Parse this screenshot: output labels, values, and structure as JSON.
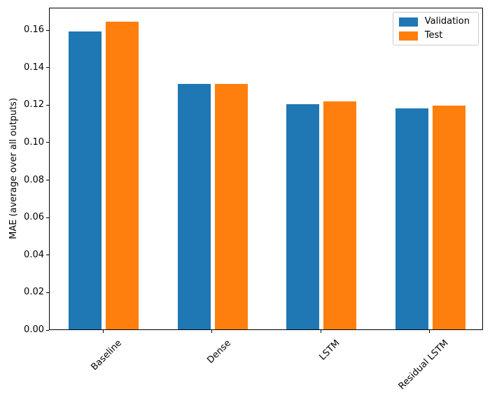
{
  "chart_data": {
    "type": "bar",
    "categories": [
      "Baseline",
      "Dense",
      "LSTM",
      "Residual LSTM"
    ],
    "series": [
      {
        "name": "Validation",
        "color": "#1f77b4",
        "values": [
          0.159,
          0.131,
          0.12,
          0.118
        ]
      },
      {
        "name": "Test",
        "color": "#ff7f0e",
        "values": [
          0.164,
          0.131,
          0.1215,
          0.1195
        ]
      }
    ],
    "title": "",
    "xlabel": "",
    "ylabel": "MAE (average over all outputs)",
    "ylim": [
      0,
      0.172
    ],
    "yticks": [
      0.0,
      0.02,
      0.04,
      0.06,
      0.08,
      0.1,
      0.12,
      0.14,
      0.16
    ],
    "ytick_format": "2-decimals",
    "xtick_rotation": 45,
    "grid": false,
    "legend": {
      "position": "upper-right",
      "entries": [
        "Validation",
        "Test"
      ]
    }
  }
}
